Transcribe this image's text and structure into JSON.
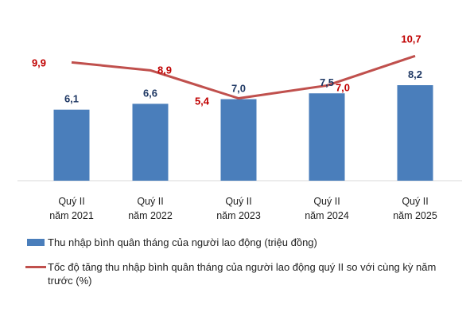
{
  "chart_data": {
    "type": "bar",
    "categories": [
      [
        "Quý II",
        "năm 2021"
      ],
      [
        "Quý II",
        "năm 2022"
      ],
      [
        "Quý II",
        "năm 2023"
      ],
      [
        "Quý II",
        "năm 2024"
      ],
      [
        "Quý II",
        "năm 2025"
      ]
    ],
    "series": [
      {
        "name": "Thu nhập bình quân tháng của người lao động (triệu đồng)",
        "type": "bar",
        "values": [
          6.1,
          6.6,
          7.0,
          7.5,
          8.2
        ],
        "labels": [
          "6,1",
          "6,6",
          "7,0",
          "7,5",
          "8,2"
        ],
        "color": "#4a7ebb"
      },
      {
        "name": "Tốc độ tăng thu nhập bình quân tháng của người lao động quý II so với cùng kỳ năm trước (%)",
        "type": "line",
        "values": [
          9.9,
          8.9,
          5.4,
          7.0,
          10.7
        ],
        "labels": [
          "9,9",
          "8,9",
          "5,4",
          "7,0",
          "10,7"
        ],
        "color": "#c0504d"
      }
    ],
    "legend_position": "bottom",
    "grid": false
  },
  "legend": {
    "bar_label": "Thu nhập bình quân tháng của người lao động (triệu đồng)",
    "line_label": "Tốc độ tăng thu nhập bình quân tháng của người lao động quý II so với cùng kỳ năm trước (%)"
  }
}
